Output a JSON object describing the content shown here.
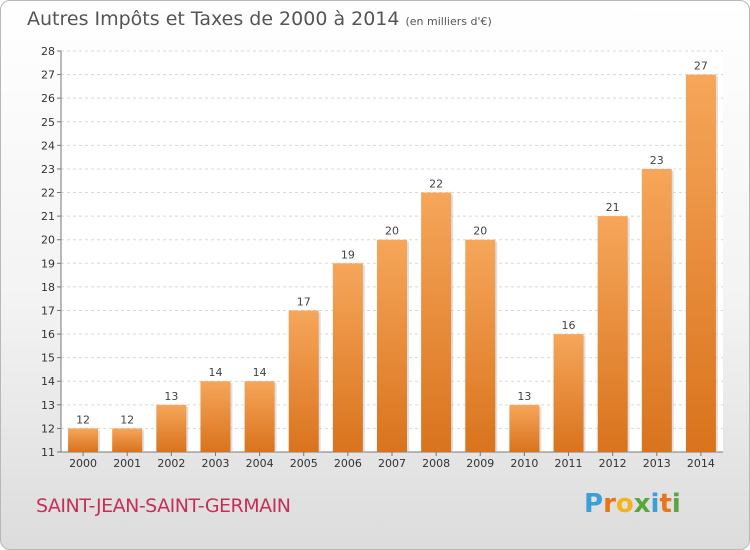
{
  "header": {
    "title": "Autres Impôts et Taxes de 2000 à 2014",
    "subtitle": "(en milliers d'€)"
  },
  "footer": {
    "commune": "SAINT-JEAN-SAINT-GERMAIN",
    "logo_letters": [
      "P",
      "r",
      "o",
      "x",
      "i",
      "t",
      "i"
    ]
  },
  "colors": {
    "bar_light": "#f6a65a",
    "bar_dark": "#d9731d",
    "commune": "#c62f57",
    "logo": [
      "#3aa0d9",
      "#e8751a",
      "#f2b51d",
      "#5aa63a",
      "#3aa0d9",
      "#e8751a",
      "#5aa63a"
    ]
  },
  "chart_data": {
    "type": "bar",
    "title": "Autres Impôts et Taxes de 2000 à 2014",
    "subtitle": "(en milliers d'€)",
    "categories": [
      "2000",
      "2001",
      "2002",
      "2003",
      "2004",
      "2005",
      "2006",
      "2007",
      "2008",
      "2009",
      "2010",
      "2011",
      "2012",
      "2013",
      "2014"
    ],
    "values": [
      12,
      12,
      13,
      14,
      14,
      17,
      19,
      20,
      22,
      20,
      13,
      16,
      21,
      23,
      27
    ],
    "ylim": [
      11,
      28
    ],
    "yticks": [
      11,
      12,
      13,
      14,
      15,
      16,
      17,
      18,
      19,
      20,
      21,
      22,
      23,
      24,
      25,
      26,
      27,
      28
    ],
    "grid": true,
    "legend": false
  }
}
